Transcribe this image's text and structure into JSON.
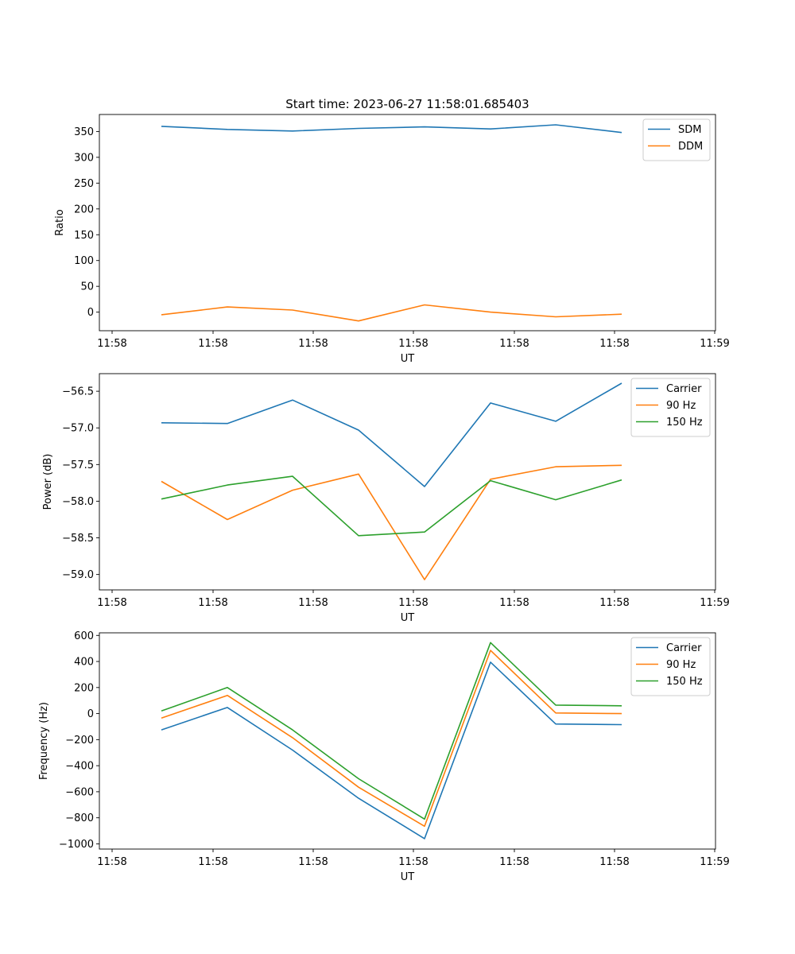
{
  "figure": {
    "title": "Start time: 2023-06-27 11:58:01.685403"
  },
  "chart_data": [
    {
      "type": "line",
      "title": "Start time: 2023-06-27 11:58:01.685403",
      "xlabel": "UT",
      "ylabel": "Ratio",
      "x_ticks": [
        "11:58",
        "11:58",
        "11:58",
        "11:58",
        "11:58",
        "11:58",
        "11:59"
      ],
      "y_ticks": [
        0,
        50,
        100,
        150,
        200,
        250,
        300,
        350
      ],
      "ylim": [
        -36,
        383
      ],
      "grid": false,
      "legend": "top-right",
      "series": [
        {
          "name": "SDM",
          "color": "#1f77b4",
          "values": [
            360,
            354,
            351,
            356,
            359,
            355,
            363,
            348
          ]
        },
        {
          "name": "DDM",
          "color": "#ff7f0e",
          "values": [
            -5,
            10,
            4,
            -17,
            14,
            0,
            -9,
            -4
          ]
        }
      ]
    },
    {
      "type": "line",
      "xlabel": "UT",
      "ylabel": "Power (dB)",
      "x_ticks": [
        "11:58",
        "11:58",
        "11:58",
        "11:58",
        "11:58",
        "11:58",
        "11:59"
      ],
      "y_ticks": [
        -59.0,
        -58.5,
        -58.0,
        -57.5,
        -57.0,
        -56.5
      ],
      "y_tick_labels": [
        "−59.0",
        "−58.5",
        "−58.0",
        "−57.5",
        "−57.0",
        "−56.5"
      ],
      "ylim": [
        -59.21,
        -56.26
      ],
      "grid": false,
      "legend": "top-right",
      "series": [
        {
          "name": "Carrier",
          "color": "#1f77b4",
          "values": [
            -56.93,
            -56.94,
            -56.62,
            -57.03,
            -57.8,
            -56.66,
            -56.91,
            -56.39
          ]
        },
        {
          "name": "90 Hz",
          "color": "#ff7f0e",
          "values": [
            -57.73,
            -58.25,
            -57.85,
            -57.63,
            -59.07,
            -57.7,
            -57.53,
            -57.51
          ]
        },
        {
          "name": "150 Hz",
          "color": "#2ca02c",
          "values": [
            -57.97,
            -57.78,
            -57.66,
            -58.47,
            -58.42,
            -57.72,
            -57.98,
            -57.71
          ]
        }
      ]
    },
    {
      "type": "line",
      "xlabel": "UT",
      "ylabel": "Frequency (Hz)",
      "x_ticks": [
        "11:58",
        "11:58",
        "11:58",
        "11:58",
        "11:58",
        "11:58",
        "11:59"
      ],
      "y_ticks": [
        -1000,
        -800,
        -600,
        -400,
        -200,
        0,
        200,
        400,
        600
      ],
      "y_tick_labels": [
        "−1000",
        "−800",
        "−600",
        "−400",
        "−200",
        "0",
        "200",
        "400",
        "600"
      ],
      "ylim": [
        -1040,
        620
      ],
      "grid": false,
      "legend": "top-right",
      "series": [
        {
          "name": "Carrier",
          "color": "#1f77b4",
          "values": [
            -125,
            47,
            -280,
            -650,
            -960,
            395,
            -80,
            -85
          ]
        },
        {
          "name": "90 Hz",
          "color": "#ff7f0e",
          "values": [
            -35,
            140,
            -185,
            -565,
            -865,
            485,
            5,
            0
          ]
        },
        {
          "name": "150 Hz",
          "color": "#2ca02c",
          "values": [
            20,
            200,
            -125,
            -500,
            -810,
            545,
            65,
            60
          ]
        }
      ]
    }
  ]
}
